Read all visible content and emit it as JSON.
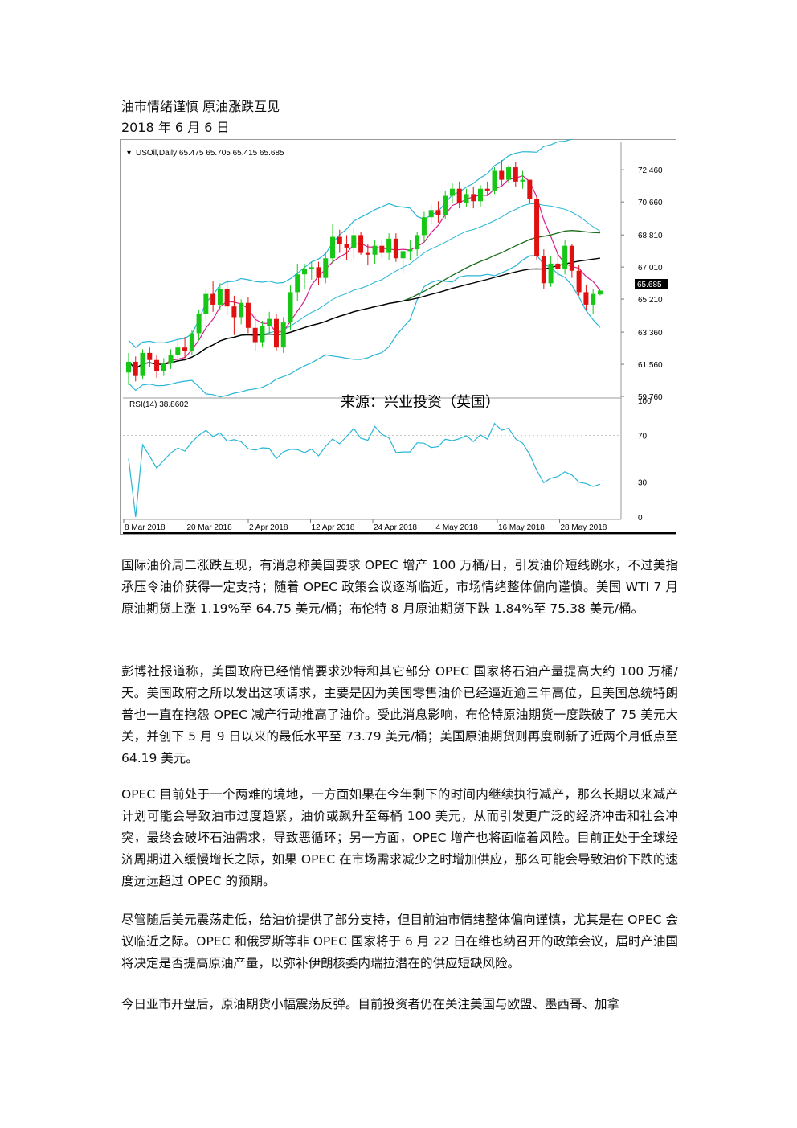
{
  "document": {
    "title": "油市情绪谨慎 原油涨跌互见",
    "date": "2018 年 6 月 6 日",
    "paragraphs": [
      "国际油价周二涨跌互现，有消息称美国要求 OPEC 增产 100 万桶/日，引发油价短线跳水，不过美指承压令油价获得一定支持；随着 OPEC 政策会议逐渐临近，市场情绪整体偏向谨慎。美国 WTI 7 月原油期货上涨 1.19%至 64.75 美元/桶；布伦特 8 月原油期货下跌 1.84%至 75.38 美元/桶。",
      "彭博社报道称，美国政府已经悄悄要求沙特和其它部分 OPEC 国家将石油产量提高大约 100 万桶/天。美国政府之所以发出这项请求，主要是因为美国零售油价已经逼近逾三年高位，且美国总统特朗普也一直在抱怨 OPEC 减产行动推高了油价。受此消息影响，布伦特原油期货一度跌破了 75 美元大关，并创下 5 月 9 日以来的最低水平至 73.79 美元/桶；美国原油期货则再度刷新了近两个月低点至 64.19 美元。",
      "OPEC 目前处于一个两难的境地，一方面如果在今年剩下的时间内继续执行减产，那么长期以来减产计划可能会导致油市过度趋紧，油价或飙升至每桶 100 美元，从而引发更广泛的经济冲击和社会冲突，最终会破坏石油需求，导致恶循环；另一方面，OPEC 增产也将面临着风险。目前正处于全球经济周期进入缓慢增长之际，如果 OPEC 在市场需求减少之时增加供应，那么可能会导致油价下跌的速度远远超过 OPEC 的预期。",
      "尽管随后美元震荡走低，给油价提供了部分支持，但目前油市情绪整体偏向谨慎，尤其是在 OPEC 会议临近之际。OPEC 和俄罗斯等非 OPEC 国家将于 6 月 22 日在维也纳召开的政策会议，届时产油国将决定是否提高原油产量，以弥补伊朗核委内瑞拉潜在的供应短缺风险。",
      "今日亚市开盘后，原油期货小幅震荡反弹。目前投资者仍在关注美国与欧盟、墨西哥、加拿"
    ]
  },
  "chart_data": {
    "type": "candlestick",
    "symbol_header": "USOil,Daily  65.475 65.705 65.415 65.685",
    "watermark": "来源：兴业投资（英国）",
    "current_price_label": "65.685",
    "price_ylim": [
      59.76,
      74.0
    ],
    "price_ticks": [
      "72.460",
      "70.660",
      "68.810",
      "67.010",
      "65.210",
      "63.360",
      "61.560",
      "59.760"
    ],
    "rsi_label": "RSI(14) 38.8602",
    "rsi_ticks": [
      "100",
      "70",
      "30",
      "0"
    ],
    "date_labels": [
      "8 Mar 2018",
      "20 Mar 2018",
      "2 Apr 2018",
      "12 Apr 2018",
      "24 Apr 2018",
      "4 May 2018",
      "16 May 2018",
      "28 May 2018"
    ],
    "candles": [
      [
        61.1,
        62.2,
        60.4,
        61.7
      ],
      [
        61.7,
        62.0,
        60.6,
        60.9
      ],
      [
        60.9,
        62.4,
        60.7,
        62.2
      ],
      [
        62.2,
        62.5,
        61.4,
        61.8
      ],
      [
        61.8,
        62.1,
        60.8,
        61.2
      ],
      [
        61.2,
        61.9,
        60.9,
        61.6
      ],
      [
        61.6,
        62.4,
        61.3,
        62.1
      ],
      [
        62.1,
        63.0,
        61.8,
        62.5
      ],
      [
        62.5,
        63.1,
        61.9,
        62.3
      ],
      [
        62.3,
        63.5,
        62.1,
        63.3
      ],
      [
        63.3,
        64.6,
        62.9,
        64.4
      ],
      [
        64.4,
        65.8,
        64.0,
        65.5
      ],
      [
        65.5,
        66.2,
        64.5,
        64.9
      ],
      [
        64.9,
        66.1,
        64.6,
        65.8
      ],
      [
        65.8,
        66.3,
        64.3,
        64.8
      ],
      [
        64.8,
        65.4,
        63.2,
        64.2
      ],
      [
        64.2,
        65.2,
        63.8,
        65.0
      ],
      [
        65.0,
        65.3,
        63.3,
        63.6
      ],
      [
        63.6,
        64.3,
        62.3,
        62.8
      ],
      [
        62.8,
        64.0,
        62.5,
        63.7
      ],
      [
        63.7,
        64.5,
        63.2,
        64.1
      ],
      [
        64.1,
        64.4,
        62.3,
        62.5
      ],
      [
        62.5,
        64.2,
        62.2,
        63.9
      ],
      [
        63.9,
        66.0,
        63.5,
        65.6
      ],
      [
        65.6,
        67.2,
        65.1,
        66.6
      ],
      [
        66.6,
        67.2,
        65.8,
        66.9
      ],
      [
        66.9,
        67.3,
        66.3,
        67.0
      ],
      [
        67.0,
        67.3,
        66.0,
        66.4
      ],
      [
        66.4,
        67.8,
        66.1,
        67.5
      ],
      [
        67.5,
        69.4,
        67.2,
        68.7
      ],
      [
        68.7,
        69.1,
        67.8,
        68.3
      ],
      [
        68.3,
        68.8,
        67.4,
        68.1
      ],
      [
        68.1,
        69.2,
        67.5,
        68.8
      ],
      [
        68.8,
        69.0,
        67.7,
        67.8
      ],
      [
        67.8,
        68.3,
        67.1,
        67.7
      ],
      [
        67.7,
        68.5,
        67.2,
        68.2
      ],
      [
        68.2,
        68.5,
        67.5,
        67.8
      ],
      [
        67.8,
        68.9,
        67.4,
        68.6
      ],
      [
        68.6,
        68.9,
        67.3,
        67.5
      ],
      [
        67.5,
        68.0,
        66.7,
        67.9
      ],
      [
        67.9,
        68.5,
        67.4,
        68.0
      ],
      [
        68.0,
        69.0,
        67.6,
        68.8
      ],
      [
        68.8,
        70.1,
        68.4,
        69.8
      ],
      [
        69.8,
        70.5,
        69.4,
        70.2
      ],
      [
        70.2,
        70.7,
        69.5,
        69.9
      ],
      [
        69.9,
        71.3,
        69.7,
        71.0
      ],
      [
        71.0,
        71.7,
        70.6,
        71.4
      ],
      [
        71.4,
        71.8,
        70.3,
        70.6
      ],
      [
        70.6,
        71.4,
        70.4,
        71.1
      ],
      [
        71.1,
        71.5,
        70.3,
        70.7
      ],
      [
        70.7,
        71.6,
        70.4,
        71.4
      ],
      [
        71.4,
        71.8,
        71.0,
        71.3
      ],
      [
        71.3,
        72.6,
        71.1,
        72.4
      ],
      [
        72.4,
        73.0,
        71.6,
        71.9
      ],
      [
        71.9,
        72.7,
        71.7,
        72.6
      ],
      [
        72.6,
        72.9,
        71.5,
        71.8
      ],
      [
        71.8,
        72.4,
        71.4,
        71.9
      ],
      [
        71.9,
        71.9,
        70.6,
        70.8
      ],
      [
        70.8,
        71.0,
        67.4,
        67.6
      ],
      [
        67.6,
        68.0,
        65.8,
        66.1
      ],
      [
        66.1,
        67.6,
        65.9,
        67.2
      ],
      [
        67.2,
        67.8,
        66.5,
        66.9
      ],
      [
        66.9,
        68.5,
        66.6,
        68.2
      ],
      [
        68.2,
        68.3,
        66.4,
        66.8
      ],
      [
        66.8,
        67.1,
        65.4,
        65.6
      ],
      [
        65.6,
        66.0,
        64.6,
        64.9
      ],
      [
        64.9,
        65.8,
        64.4,
        65.5
      ],
      [
        65.475,
        65.705,
        65.415,
        65.685
      ]
    ]
  }
}
